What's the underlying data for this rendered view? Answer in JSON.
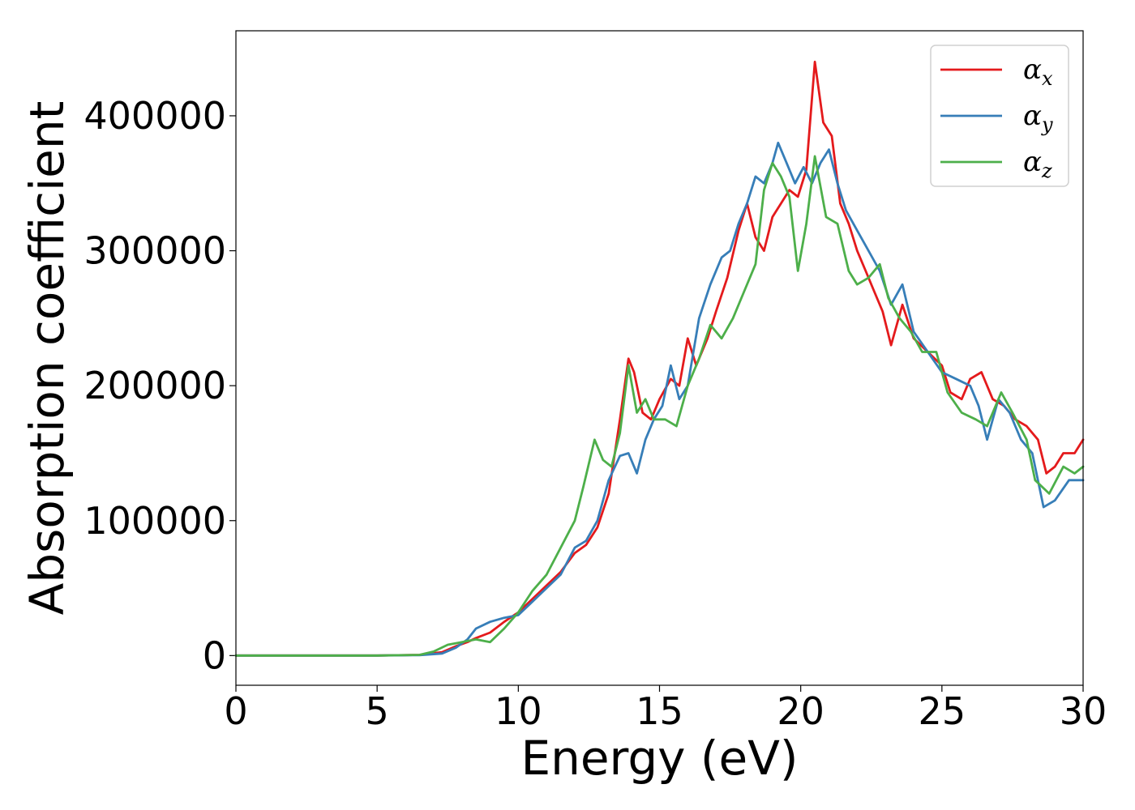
{
  "chart_data": {
    "type": "line",
    "title": "",
    "xlabel": "Energy (eV)",
    "ylabel": "Absorption coefficient",
    "xlim": [
      0,
      30
    ],
    "ylim": [
      -22000,
      463000
    ],
    "xticks": [
      0,
      5,
      10,
      15,
      20,
      25,
      30
    ],
    "yticks": [
      0,
      100000,
      200000,
      300000,
      400000
    ],
    "grid": false,
    "legend_position": "top-right",
    "series": [
      {
        "name": "α",
        "subscript": "x",
        "color": "#e41a1c",
        "points": [
          [
            0,
            0
          ],
          [
            5,
            0
          ],
          [
            6.5,
            500
          ],
          [
            7.3,
            2500
          ],
          [
            7.8,
            7000
          ],
          [
            8.2,
            10000
          ],
          [
            8.5,
            13000
          ],
          [
            9,
            17000
          ],
          [
            9.5,
            25000
          ],
          [
            10,
            32000
          ],
          [
            10.5,
            42000
          ],
          [
            11,
            52000
          ],
          [
            11.5,
            62000
          ],
          [
            12,
            76000
          ],
          [
            12.4,
            82000
          ],
          [
            12.8,
            95000
          ],
          [
            13.2,
            120000
          ],
          [
            13.6,
            175000
          ],
          [
            13.9,
            220000
          ],
          [
            14.1,
            210000
          ],
          [
            14.4,
            180000
          ],
          [
            14.7,
            175000
          ],
          [
            15,
            190000
          ],
          [
            15.4,
            205000
          ],
          [
            15.7,
            200000
          ],
          [
            16,
            235000
          ],
          [
            16.3,
            215000
          ],
          [
            16.7,
            235000
          ],
          [
            17,
            255000
          ],
          [
            17.4,
            280000
          ],
          [
            17.8,
            315000
          ],
          [
            18.1,
            335000
          ],
          [
            18.4,
            310000
          ],
          [
            18.7,
            300000
          ],
          [
            19,
            325000
          ],
          [
            19.3,
            335000
          ],
          [
            19.6,
            345000
          ],
          [
            19.9,
            340000
          ],
          [
            20.2,
            360000
          ],
          [
            20.5,
            440000
          ],
          [
            20.8,
            395000
          ],
          [
            21.1,
            385000
          ],
          [
            21.4,
            335000
          ],
          [
            21.7,
            320000
          ],
          [
            22,
            300000
          ],
          [
            22.3,
            285000
          ],
          [
            22.6,
            270000
          ],
          [
            22.9,
            255000
          ],
          [
            23.2,
            230000
          ],
          [
            23.6,
            260000
          ],
          [
            24,
            235000
          ],
          [
            24.5,
            225000
          ],
          [
            25,
            215000
          ],
          [
            25.3,
            195000
          ],
          [
            25.7,
            190000
          ],
          [
            26,
            205000
          ],
          [
            26.4,
            210000
          ],
          [
            26.8,
            190000
          ],
          [
            27.2,
            185000
          ],
          [
            27.6,
            175000
          ],
          [
            28,
            170000
          ],
          [
            28.4,
            160000
          ],
          [
            28.7,
            135000
          ],
          [
            29,
            140000
          ],
          [
            29.3,
            150000
          ],
          [
            29.7,
            150000
          ],
          [
            30,
            160000
          ]
        ]
      },
      {
        "name": "α",
        "subscript": "y",
        "color": "#377eb8",
        "points": [
          [
            0,
            0
          ],
          [
            5,
            0
          ],
          [
            6.5,
            300
          ],
          [
            7.3,
            1500
          ],
          [
            7.8,
            6000
          ],
          [
            8.2,
            12000
          ],
          [
            8.5,
            20000
          ],
          [
            9,
            25000
          ],
          [
            9.5,
            28000
          ],
          [
            10,
            30000
          ],
          [
            10.5,
            40000
          ],
          [
            11,
            50000
          ],
          [
            11.5,
            60000
          ],
          [
            12,
            80000
          ],
          [
            12.4,
            85000
          ],
          [
            12.8,
            100000
          ],
          [
            13.2,
            130000
          ],
          [
            13.6,
            148000
          ],
          [
            13.9,
            150000
          ],
          [
            14.2,
            135000
          ],
          [
            14.5,
            160000
          ],
          [
            14.8,
            175000
          ],
          [
            15.1,
            185000
          ],
          [
            15.4,
            215000
          ],
          [
            15.7,
            190000
          ],
          [
            16,
            200000
          ],
          [
            16.4,
            250000
          ],
          [
            16.8,
            275000
          ],
          [
            17.2,
            295000
          ],
          [
            17.5,
            300000
          ],
          [
            17.8,
            320000
          ],
          [
            18.1,
            335000
          ],
          [
            18.4,
            355000
          ],
          [
            18.7,
            350000
          ],
          [
            19,
            365000
          ],
          [
            19.2,
            380000
          ],
          [
            19.5,
            365000
          ],
          [
            19.8,
            350000
          ],
          [
            20.1,
            362000
          ],
          [
            20.4,
            350000
          ],
          [
            20.7,
            365000
          ],
          [
            21,
            375000
          ],
          [
            21.3,
            350000
          ],
          [
            21.6,
            330000
          ],
          [
            22,
            315000
          ],
          [
            22.4,
            300000
          ],
          [
            22.8,
            285000
          ],
          [
            23.2,
            260000
          ],
          [
            23.6,
            275000
          ],
          [
            24,
            240000
          ],
          [
            24.5,
            225000
          ],
          [
            25,
            210000
          ],
          [
            25.5,
            205000
          ],
          [
            26,
            200000
          ],
          [
            26.3,
            185000
          ],
          [
            26.6,
            160000
          ],
          [
            27,
            190000
          ],
          [
            27.4,
            180000
          ],
          [
            27.8,
            160000
          ],
          [
            28.2,
            150000
          ],
          [
            28.6,
            110000
          ],
          [
            29,
            115000
          ],
          [
            29.5,
            130000
          ],
          [
            30,
            130000
          ]
        ]
      },
      {
        "name": "α",
        "subscript": "z",
        "color": "#4daf4a",
        "points": [
          [
            0,
            0
          ],
          [
            5,
            0
          ],
          [
            6.5,
            500
          ],
          [
            7,
            3000
          ],
          [
            7.5,
            8000
          ],
          [
            8,
            10000
          ],
          [
            8.5,
            12000
          ],
          [
            9,
            10000
          ],
          [
            9.5,
            20000
          ],
          [
            10,
            32000
          ],
          [
            10.5,
            48000
          ],
          [
            11,
            60000
          ],
          [
            11.5,
            80000
          ],
          [
            12,
            100000
          ],
          [
            12.3,
            125000
          ],
          [
            12.7,
            160000
          ],
          [
            13,
            145000
          ],
          [
            13.3,
            140000
          ],
          [
            13.6,
            165000
          ],
          [
            13.9,
            215000
          ],
          [
            14.2,
            180000
          ],
          [
            14.5,
            190000
          ],
          [
            14.8,
            175000
          ],
          [
            15.2,
            175000
          ],
          [
            15.6,
            170000
          ],
          [
            16,
            200000
          ],
          [
            16.4,
            220000
          ],
          [
            16.8,
            245000
          ],
          [
            17.2,
            235000
          ],
          [
            17.6,
            250000
          ],
          [
            18,
            270000
          ],
          [
            18.4,
            290000
          ],
          [
            18.7,
            345000
          ],
          [
            19,
            365000
          ],
          [
            19.3,
            355000
          ],
          [
            19.6,
            340000
          ],
          [
            19.9,
            285000
          ],
          [
            20.2,
            320000
          ],
          [
            20.5,
            370000
          ],
          [
            20.9,
            325000
          ],
          [
            21.3,
            320000
          ],
          [
            21.7,
            285000
          ],
          [
            22,
            275000
          ],
          [
            22.4,
            280000
          ],
          [
            22.8,
            290000
          ],
          [
            23.1,
            265000
          ],
          [
            23.5,
            250000
          ],
          [
            23.9,
            240000
          ],
          [
            24.3,
            225000
          ],
          [
            24.8,
            225000
          ],
          [
            25.2,
            195000
          ],
          [
            25.7,
            180000
          ],
          [
            26.2,
            175000
          ],
          [
            26.6,
            170000
          ],
          [
            27.1,
            195000
          ],
          [
            27.5,
            180000
          ],
          [
            28,
            160000
          ],
          [
            28.3,
            130000
          ],
          [
            28.8,
            120000
          ],
          [
            29.3,
            140000
          ],
          [
            29.7,
            135000
          ],
          [
            30,
            140000
          ]
        ]
      }
    ]
  }
}
